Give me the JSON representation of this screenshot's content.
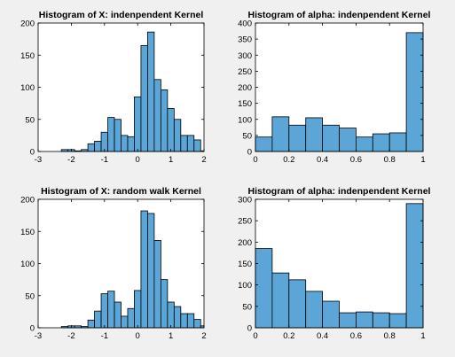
{
  "colors": {
    "bar_fill": "#5ba6d6",
    "bar_edge": "#000000",
    "axes_bg": "#ffffff",
    "figure_bg": "#f0f0f0"
  },
  "chart_data": [
    {
      "type": "bar",
      "title": "Histogram of X: indenpendent Kernel",
      "xlim": [
        -3,
        2
      ],
      "ylim": [
        0,
        200
      ],
      "xticks": [
        "-3",
        "-2",
        "-1",
        "0",
        "1",
        "2"
      ],
      "yticks": [
        "0",
        "50",
        "100",
        "150",
        "200"
      ],
      "bin_edges": [
        -2.3,
        -2.1,
        -1.9,
        -1.7,
        -1.5,
        -1.3,
        -1.1,
        -0.9,
        -0.7,
        -0.5,
        -0.3,
        -0.1,
        0.1,
        0.3,
        0.5,
        0.7,
        0.9,
        1.1,
        1.3,
        1.5,
        1.7,
        1.9,
        2.0
      ],
      "values": [
        3,
        3,
        1,
        3,
        12,
        16,
        30,
        53,
        50,
        25,
        23,
        85,
        165,
        186,
        112,
        96,
        67,
        50,
        25,
        25,
        18,
        1
      ]
    },
    {
      "type": "bar",
      "title": "Histogram of alpha: indenpendent Kernel",
      "xlim": [
        0,
        1
      ],
      "ylim": [
        0,
        400
      ],
      "xticks": [
        "0",
        "0.2",
        "0.4",
        "0.6",
        "0.8",
        "1"
      ],
      "yticks": [
        "0",
        "50",
        "100",
        "150",
        "200",
        "250",
        "300",
        "350",
        "400"
      ],
      "bin_edges": [
        0,
        0.1,
        0.2,
        0.3,
        0.4,
        0.5,
        0.6,
        0.7,
        0.8,
        0.9,
        1.0
      ],
      "values": [
        45,
        108,
        82,
        105,
        82,
        73,
        45,
        55,
        58,
        370
      ]
    },
    {
      "type": "bar",
      "title": "Histogram of X: random walk Kernel",
      "xlim": [
        -3,
        2
      ],
      "ylim": [
        0,
        200
      ],
      "xticks": [
        "-3",
        "-2",
        "-1",
        "0",
        "1",
        "2"
      ],
      "yticks": [
        "0",
        "50",
        "100",
        "150",
        "200"
      ],
      "bin_edges": [
        -2.3,
        -2.1,
        -1.9,
        -1.7,
        -1.5,
        -1.3,
        -1.1,
        -0.9,
        -0.7,
        -0.5,
        -0.3,
        -0.1,
        0.1,
        0.3,
        0.5,
        0.7,
        0.9,
        1.1,
        1.3,
        1.5,
        1.7,
        1.9,
        2.0
      ],
      "values": [
        2,
        3,
        3,
        2,
        12,
        26,
        53,
        57,
        40,
        18,
        30,
        58,
        182,
        178,
        136,
        75,
        40,
        33,
        22,
        22,
        13,
        3
      ]
    },
    {
      "type": "bar",
      "title": "Histogram of alpha: indenpendent Kernel",
      "xlim": [
        0,
        1
      ],
      "ylim": [
        0,
        300
      ],
      "xticks": [
        "0",
        "0.2",
        "0.4",
        "0.6",
        "0.8",
        "1"
      ],
      "yticks": [
        "0",
        "50",
        "100",
        "150",
        "200",
        "250",
        "300"
      ],
      "bin_edges": [
        0,
        0.1,
        0.2,
        0.3,
        0.4,
        0.5,
        0.6,
        0.7,
        0.8,
        0.9,
        1.0
      ],
      "values": [
        185,
        128,
        112,
        85,
        62,
        35,
        37,
        35,
        33,
        290
      ]
    }
  ]
}
